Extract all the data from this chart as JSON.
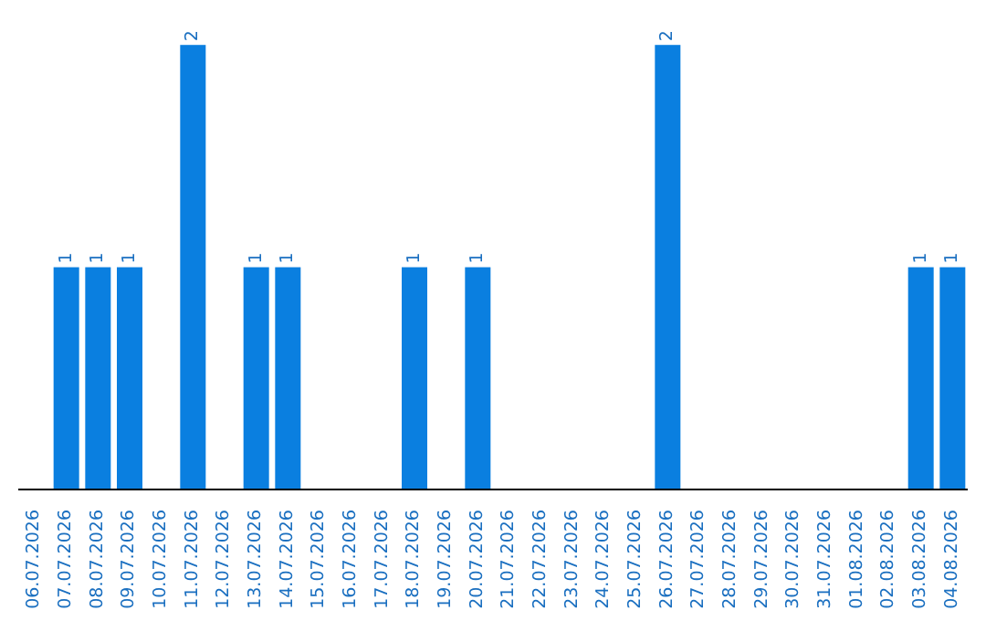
{
  "chart_data": {
    "type": "bar",
    "categories": [
      "06.07.2026",
      "07.07.2026",
      "08.07.2026",
      "09.07.2026",
      "10.07.2026",
      "11.07.2026",
      "12.07.2026",
      "13.07.2026",
      "14.07.2026",
      "15.07.2026",
      "16.07.2026",
      "17.07.2026",
      "18.07.2026",
      "19.07.2026",
      "20.07.2026",
      "21.07.2026",
      "22.07.2026",
      "23.07.2026",
      "24.07.2026",
      "25.07.2026",
      "26.07.2026",
      "27.07.2026",
      "28.07.2026",
      "29.07.2026",
      "30.07.2026",
      "31.07.2026",
      "01.08.2026",
      "02.08.2026",
      "03.08.2026",
      "04.08.2026"
    ],
    "values": [
      0,
      1,
      1,
      1,
      0,
      2,
      0,
      1,
      1,
      0,
      0,
      0,
      1,
      0,
      1,
      0,
      0,
      0,
      0,
      0,
      2,
      0,
      0,
      0,
      0,
      0,
      0,
      0,
      1,
      1
    ],
    "value_labels": [
      null,
      "1",
      "1",
      "1",
      null,
      "2",
      null,
      "1",
      "1",
      null,
      null,
      null,
      "1",
      null,
      "1",
      null,
      null,
      null,
      null,
      null,
      "2",
      null,
      null,
      null,
      null,
      null,
      null,
      null,
      "1",
      "1"
    ],
    "color": "#0a7fe0",
    "tick_labels": "x",
    "grid": false
  }
}
